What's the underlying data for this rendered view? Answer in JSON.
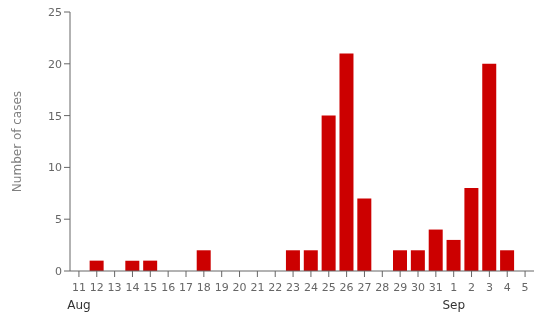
{
  "chart_data": {
    "type": "bar",
    "categories": [
      "11",
      "12",
      "13",
      "14",
      "15",
      "16",
      "17",
      "18",
      "19",
      "20",
      "21",
      "22",
      "23",
      "24",
      "25",
      "26",
      "27",
      "28",
      "29",
      "30",
      "31",
      "1",
      "2",
      "3",
      "4",
      "5"
    ],
    "values": [
      0,
      1,
      0,
      1,
      1,
      0,
      0,
      2,
      0,
      0,
      0,
      0,
      2,
      2,
      15,
      21,
      7,
      0,
      2,
      2,
      4,
      3,
      8,
      20,
      2,
      0
    ],
    "color": "#cc0000",
    "ylabel": "Number of cases",
    "ylim": [
      0,
      25
    ],
    "yticks": [
      0,
      5,
      10,
      15,
      20,
      25
    ],
    "grid": false,
    "annotations": [
      {
        "text": "Aug",
        "category": "11"
      },
      {
        "text": "Sep",
        "category": "1"
      }
    ]
  }
}
